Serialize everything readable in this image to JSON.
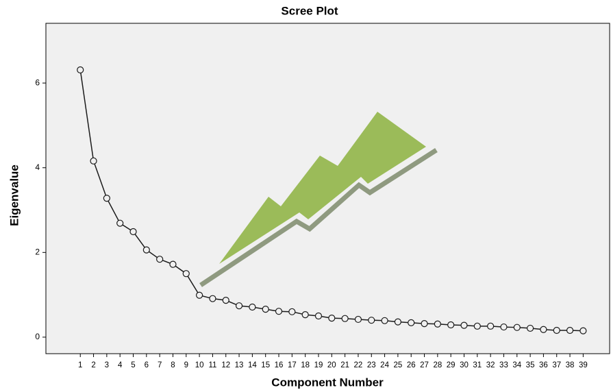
{
  "chart_data": {
    "type": "line",
    "title": "Scree Plot",
    "x_label": "Component Number",
    "y_label": "Eigenvalue",
    "x": [
      1,
      2,
      3,
      4,
      5,
      6,
      7,
      8,
      9,
      10,
      11,
      12,
      13,
      14,
      15,
      16,
      17,
      18,
      19,
      20,
      21,
      22,
      23,
      24,
      25,
      26,
      27,
      28,
      29,
      30,
      31,
      32,
      33,
      34,
      35,
      36,
      37,
      38,
      39
    ],
    "values": [
      6.31,
      4.16,
      3.28,
      2.69,
      2.49,
      2.06,
      1.84,
      1.72,
      1.5,
      0.99,
      0.91,
      0.87,
      0.74,
      0.71,
      0.66,
      0.61,
      0.6,
      0.53,
      0.5,
      0.45,
      0.44,
      0.42,
      0.4,
      0.39,
      0.36,
      0.34,
      0.32,
      0.31,
      0.29,
      0.28,
      0.26,
      0.26,
      0.24,
      0.23,
      0.21,
      0.18,
      0.16,
      0.16,
      0.15
    ],
    "color": "#1a1a1a",
    "xlim": [
      -1.6,
      41.0
    ],
    "xticks": [
      1,
      2,
      3,
      4,
      5,
      6,
      7,
      8,
      9,
      10,
      11,
      12,
      13,
      14,
      15,
      16,
      17,
      18,
      19,
      20,
      21,
      22,
      23,
      24,
      25,
      26,
      27,
      28,
      29,
      30,
      31,
      32,
      33,
      34,
      35,
      36,
      37,
      38,
      39
    ],
    "ylim": [
      -0.39,
      7.41
    ],
    "yticks": [
      0,
      2,
      4,
      6
    ]
  }
}
